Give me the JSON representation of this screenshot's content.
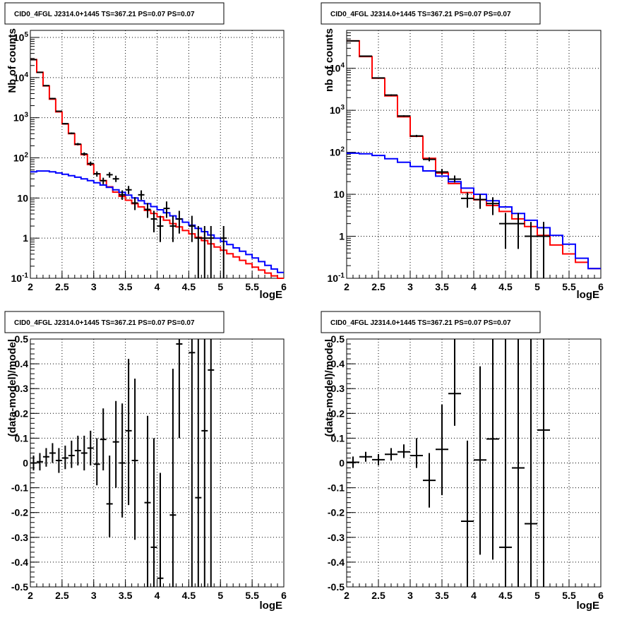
{
  "chart_data": [
    {
      "type": "line",
      "title": "CID0_4FGL J2314.0+1445 TS=367.21 PS=0.07 PS=0.07",
      "xlabel": "logE",
      "ylabel": "Nb of counts",
      "xlim": [
        2,
        6
      ],
      "ylim": [
        0.1,
        150000
      ],
      "yscale": "log",
      "grid": true,
      "xticks": [
        "2",
        "2.5",
        "3",
        "3.5",
        "4",
        "4.5",
        "5",
        "5.5",
        "6"
      ],
      "yticks": [
        "10^{-1}",
        "1",
        "10",
        "10^{2}",
        "10^{3}",
        "10^{4}",
        "10^{5}"
      ],
      "series": [
        {
          "color": "#ff0000",
          "kind": "step",
          "edges": [
            2,
            2.1,
            2.2,
            2.3,
            2.4,
            2.5,
            2.6,
            2.7,
            2.8,
            2.9,
            3,
            3.1,
            3.2,
            3.3,
            3.4,
            3.5,
            3.6,
            3.7,
            3.8,
            3.9,
            4,
            4.1,
            4.2,
            4.3,
            4.4,
            4.5,
            4.6,
            4.7,
            4.8,
            4.9,
            5,
            5.1,
            5.2,
            5.3,
            5.4,
            5.5,
            5.6,
            5.7,
            5.8,
            5.9,
            6
          ],
          "values": [
            28000,
            13500,
            6200,
            2900,
            1400,
            700,
            400,
            215,
            120,
            68,
            40,
            27,
            19,
            14,
            11,
            8.8,
            7.2,
            6.0,
            4.9,
            4.1,
            3.4,
            2.8,
            2.3,
            1.9,
            1.55,
            1.28,
            1.05,
            0.87,
            0.72,
            0.6,
            0.5,
            0.41,
            0.34,
            0.28,
            0.23,
            0.19,
            0.16,
            0.135,
            0.115,
            0.1
          ]
        },
        {
          "color": "#0000ff",
          "kind": "step",
          "edges": [
            2,
            2.1,
            2.2,
            2.3,
            2.4,
            2.5,
            2.6,
            2.7,
            2.8,
            2.9,
            3,
            3.1,
            3.2,
            3.3,
            3.4,
            3.5,
            3.6,
            3.7,
            3.8,
            3.9,
            4,
            4.1,
            4.2,
            4.3,
            4.4,
            4.5,
            4.6,
            4.7,
            4.8,
            4.9,
            5,
            5.1,
            5.2,
            5.3,
            5.4,
            5.5,
            5.6,
            5.7,
            5.8,
            5.9,
            6
          ],
          "values": [
            45,
            47,
            47,
            45,
            42,
            39,
            36,
            33,
            30,
            27,
            24,
            21,
            18.5,
            16,
            13.8,
            11.8,
            10,
            8.5,
            7.2,
            6.1,
            5.1,
            4.3,
            3.6,
            3.0,
            2.5,
            2.1,
            1.75,
            1.45,
            1.2,
            1.0,
            0.83,
            0.69,
            0.57,
            0.47,
            0.39,
            0.32,
            0.26,
            0.21,
            0.17,
            0.14
          ]
        },
        {
          "color": "#000000",
          "kind": "points",
          "x": [
            2.05,
            2.15,
            2.25,
            2.35,
            2.45,
            2.55,
            2.65,
            2.75,
            2.85,
            2.95,
            3.05,
            3.15,
            3.25,
            3.35,
            3.45,
            3.55,
            3.65,
            3.75,
            3.85,
            3.95,
            4.05,
            4.15,
            4.25,
            4.35,
            4.55,
            4.65,
            4.75,
            4.85,
            5.05
          ],
          "y": [
            28000,
            13500,
            6300,
            3000,
            1450,
            710,
            410,
            220,
            125,
            72,
            40,
            27,
            38,
            30,
            12,
            16,
            7.5,
            12,
            5.2,
            3.0,
            2.0,
            5.5,
            2.0,
            3.0,
            2.0,
            1.0,
            1.0,
            1.0,
            1.0
          ],
          "ylow": [
            27500,
            13200,
            6100,
            2900,
            1400,
            680,
            390,
            205,
            113,
            63,
            34,
            22,
            32,
            25,
            9,
            12.5,
            5,
            9,
            3.2,
            1.4,
            0.8,
            3.2,
            0.8,
            1.3,
            0.8,
            0.1,
            0.1,
            0.1,
            0.1
          ],
          "yhigh": [
            28500,
            13800,
            6500,
            3100,
            1500,
            740,
            430,
            235,
            137,
            81,
            46,
            32,
            44,
            36,
            15.5,
            20,
            10.5,
            15.5,
            7.5,
            4.8,
            3.6,
            8.2,
            3.6,
            4.8,
            3.6,
            2.0,
            2.0,
            2.0,
            2.0
          ]
        }
      ]
    },
    {
      "type": "line",
      "title": "CID0_4FGL J2314.0+1445 TS=367.21 PS=0.07 PS=0.07",
      "xlabel": "logE",
      "ylabel": "nb of counts",
      "xlim": [
        2,
        6
      ],
      "ylim": [
        0.1,
        80000
      ],
      "yscale": "log",
      "grid": true,
      "xticks": [
        "2",
        "2.5",
        "3",
        "3.5",
        "4",
        "4.5",
        "5",
        "5.5",
        "6"
      ],
      "yticks": [
        "10^{-1}",
        "1",
        "10",
        "10^{2}",
        "10^{3}",
        "10^{4}"
      ],
      "series": [
        {
          "color": "#ff0000",
          "kind": "step",
          "edges": [
            2,
            2.2,
            2.4,
            2.6,
            2.8,
            3,
            3.2,
            3.4,
            3.6,
            3.8,
            4,
            4.2,
            4.4,
            4.6,
            4.8,
            5,
            5.2,
            5.4,
            5.6,
            5.8,
            6
          ],
          "values": [
            45000,
            19000,
            5800,
            2200,
            700,
            240,
            72,
            32,
            18,
            11,
            7.4,
            5.4,
            3.9,
            2.6,
            1.7,
            1.05,
            0.62,
            0.38,
            0.24,
            0.17
          ]
        },
        {
          "color": "#0000ff",
          "kind": "step",
          "edges": [
            2,
            2.2,
            2.4,
            2.6,
            2.8,
            3,
            3.2,
            3.4,
            3.6,
            3.8,
            4,
            4.2,
            4.4,
            4.6,
            4.8,
            5,
            5.2,
            5.4,
            5.6,
            5.8,
            6
          ],
          "values": [
            95,
            92,
            84,
            70,
            58,
            46,
            36,
            27,
            20,
            14,
            10,
            7.0,
            5.0,
            3.5,
            2.4,
            1.6,
            1.05,
            0.65,
            0.3,
            0.17
          ]
        },
        {
          "color": "#000000",
          "kind": "points",
          "x": [
            2.1,
            2.3,
            2.5,
            2.7,
            2.9,
            3.1,
            3.3,
            3.5,
            3.7,
            3.9,
            4.1,
            4.3,
            4.5,
            4.7,
            4.9,
            5.1
          ],
          "y": [
            45000,
            19500,
            5900,
            2300,
            730,
            245,
            68,
            34,
            23,
            8,
            7.5,
            6,
            2,
            2,
            1,
            1
          ],
          "ylow": [
            44000,
            19100,
            5750,
            2200,
            700,
            230,
            61,
            29,
            19,
            4.8,
            4.5,
            3.2,
            0.5,
            0.5,
            0.1,
            0.1
          ],
          "yhigh": [
            46000,
            19900,
            6050,
            2400,
            760,
            260,
            76,
            40,
            28,
            11,
            10,
            8.5,
            3.6,
            3.6,
            2.2,
            2.2
          ]
        }
      ]
    },
    {
      "type": "scatter",
      "title": "CID0_4FGL J2314.0+1445 TS=367.21 PS=0.07 PS=0.07",
      "xlabel": "logE",
      "ylabel": "(data-model)/model",
      "xlim": [
        2,
        6
      ],
      "ylim": [
        -0.5,
        0.5
      ],
      "grid": true,
      "xticks": [
        "2",
        "2.5",
        "3",
        "3.5",
        "4",
        "4.5",
        "5",
        "5.5",
        "6"
      ],
      "yticks": [
        "-0.5",
        "-0.4",
        "-0.3",
        "-0.2",
        "-0.1",
        "0",
        "0.1",
        "0.2",
        "0.3",
        "0.4",
        "0.5"
      ],
      "series": [
        {
          "color": "#000000",
          "x": [
            2.05,
            2.15,
            2.25,
            2.35,
            2.45,
            2.55,
            2.65,
            2.75,
            2.85,
            2.95,
            3.05,
            3.15,
            3.25,
            3.35,
            3.45,
            3.55,
            3.65,
            3.85,
            3.95,
            4.05,
            4.25,
            4.35,
            4.55,
            4.65,
            4.75,
            4.85
          ],
          "y": [
            0.0,
            0.005,
            0.025,
            0.04,
            0.01,
            0.02,
            0.03,
            0.05,
            0.04,
            0.06,
            -0.005,
            0.095,
            -0.165,
            0.085,
            0.0,
            0.13,
            0.01,
            -0.16,
            -0.34,
            -0.465,
            -0.21,
            0.48,
            0.445,
            -0.14,
            0.13,
            0.375
          ],
          "ylow": [
            -0.03,
            -0.03,
            -0.015,
            0.0,
            -0.04,
            -0.025,
            -0.02,
            -0.01,
            -0.03,
            -0.01,
            -0.09,
            -0.03,
            -0.3,
            -0.1,
            -0.22,
            -0.17,
            -0.31,
            -0.5,
            -0.5,
            -0.5,
            -0.5,
            0.1,
            -0.5,
            -0.5,
            -0.5,
            -0.5
          ],
          "yhigh": [
            0.03,
            0.04,
            0.06,
            0.08,
            0.06,
            0.07,
            0.09,
            0.11,
            0.11,
            0.13,
            0.1,
            0.22,
            0.03,
            0.25,
            0.24,
            0.42,
            0.34,
            0.19,
            0.1,
            -0.04,
            0.38,
            0.5,
            0.5,
            0.5,
            0.5,
            0.5
          ]
        }
      ]
    },
    {
      "type": "scatter",
      "title": "CID0_4FGL J2314.0+1445 TS=367.21 PS=0.07 PS=0.07",
      "xlabel": "logE",
      "ylabel": "(data-model)/model",
      "xlim": [
        2,
        6
      ],
      "ylim": [
        -0.5,
        0.5
      ],
      "grid": true,
      "xticks": [
        "2",
        "2.5",
        "3",
        "3.5",
        "4",
        "4.5",
        "5",
        "5.5",
        "6"
      ],
      "yticks": [
        "-0.5",
        "-0.4",
        "-0.3",
        "-0.2",
        "-0.1",
        "0",
        "0.1",
        "0.2",
        "0.3",
        "0.4",
        "0.5"
      ],
      "series": [
        {
          "color": "#000000",
          "x": [
            2.1,
            2.3,
            2.5,
            2.7,
            2.9,
            3.1,
            3.3,
            3.5,
            3.7,
            3.9,
            4.1,
            4.3,
            4.5,
            4.7,
            4.9,
            5.1
          ],
          "y": [
            0.003,
            0.025,
            0.013,
            0.035,
            0.045,
            0.03,
            -0.07,
            0.055,
            0.28,
            -0.235,
            0.012,
            0.097,
            -0.34,
            -0.02,
            -0.245,
            0.133
          ],
          "ylow": [
            -0.02,
            0.005,
            -0.01,
            0.01,
            0.02,
            -0.02,
            -0.18,
            -0.13,
            0.15,
            -0.5,
            -0.37,
            -0.39,
            -0.5,
            -0.5,
            -0.5,
            -0.5
          ],
          "yhigh": [
            0.026,
            0.045,
            0.036,
            0.06,
            0.075,
            0.1,
            0.04,
            0.235,
            0.5,
            0.09,
            0.39,
            0.5,
            0.5,
            0.5,
            0.5,
            0.5
          ]
        }
      ]
    }
  ]
}
